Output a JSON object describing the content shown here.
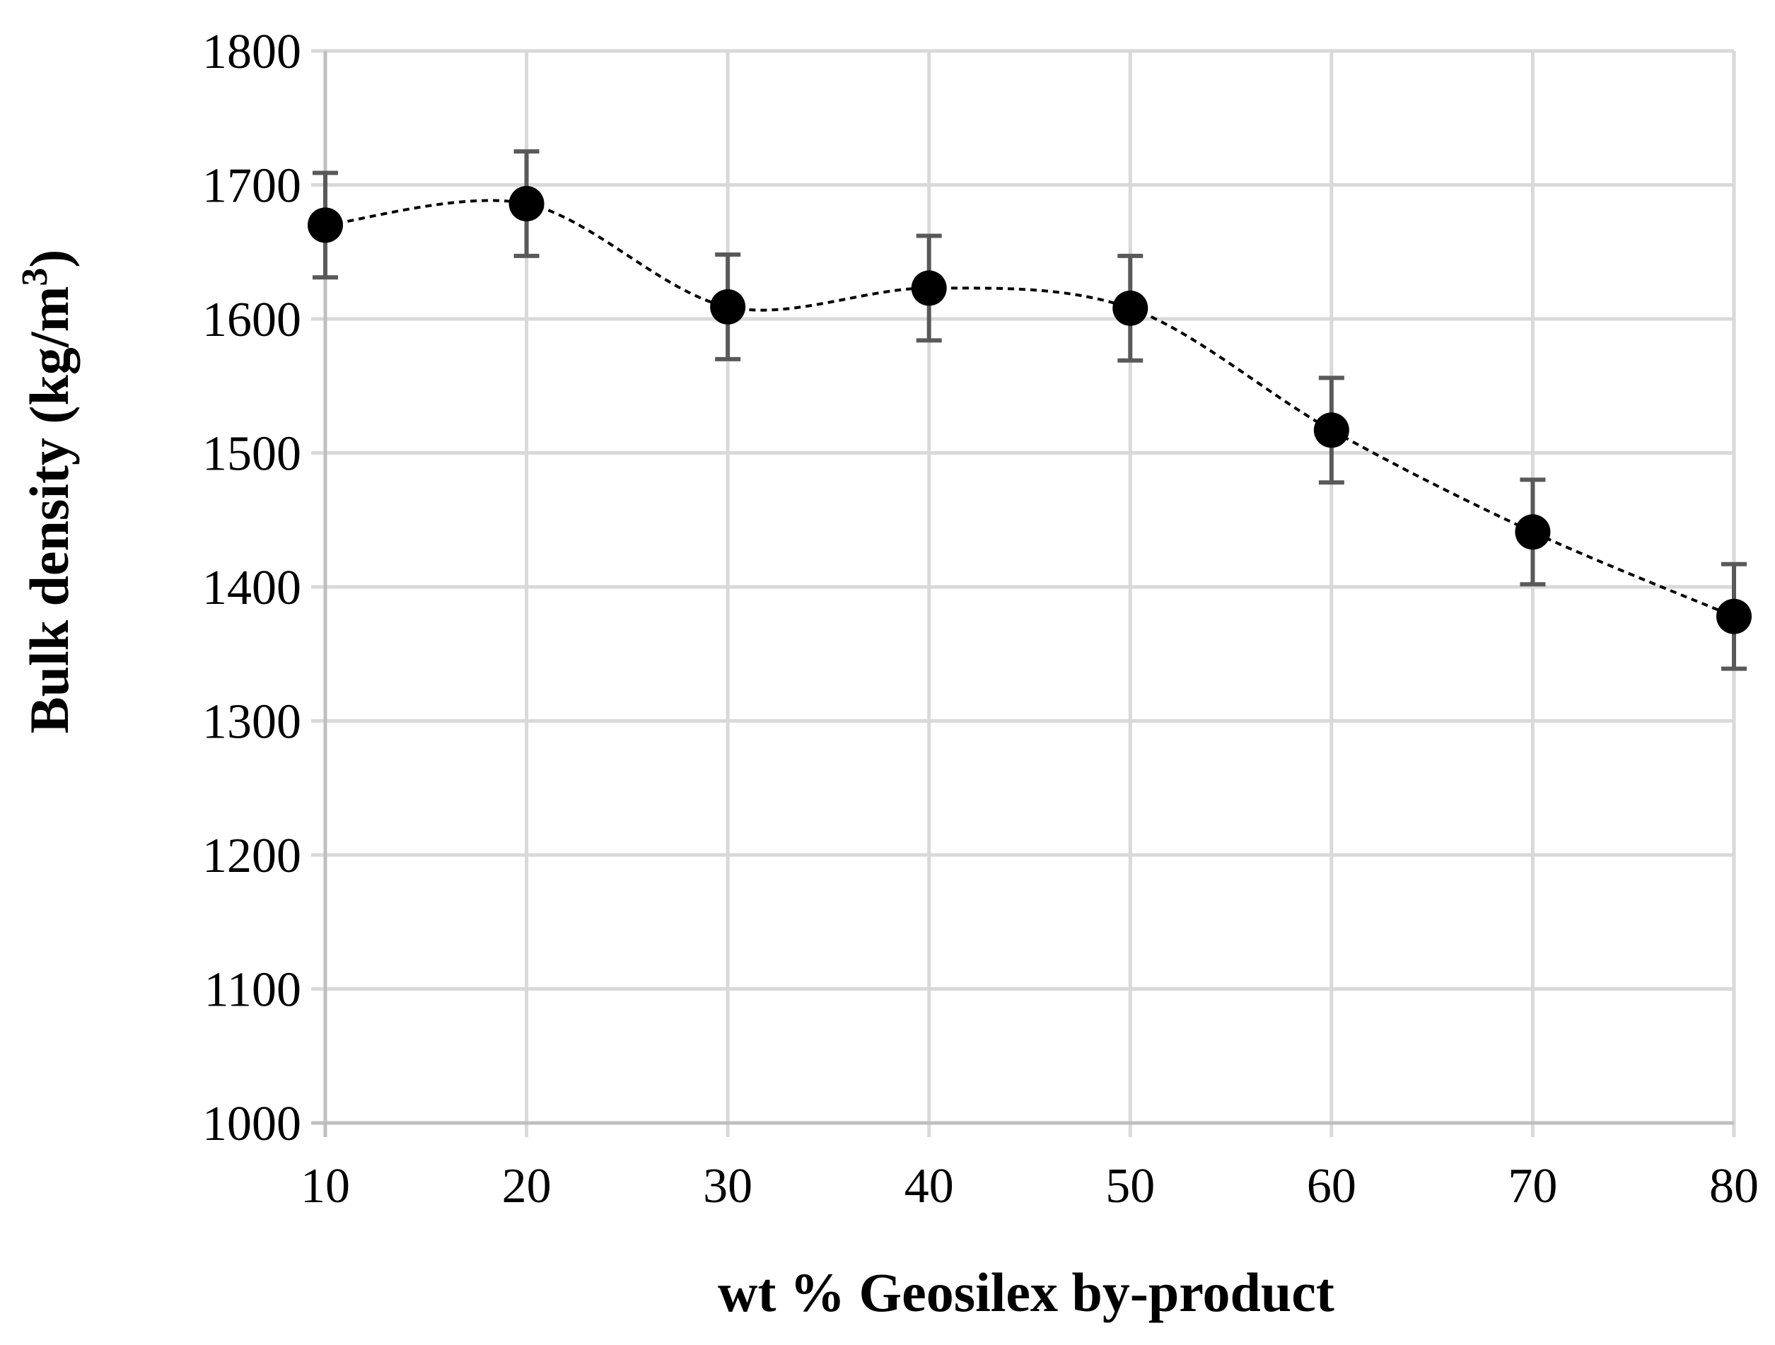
{
  "chart_data": {
    "type": "scatter",
    "title": "",
    "xlabel": "wt % Geosilex by-product",
    "ylabel_main": "Bulk density  (kg/m",
    "ylabel_sup": "3",
    "ylabel_close": ")",
    "x": [
      10,
      20,
      30,
      40,
      50,
      60,
      70,
      80
    ],
    "y": [
      1670,
      1686,
      1609,
      1623,
      1608,
      1517,
      1441,
      1378
    ],
    "error": [
      39,
      39,
      39,
      39,
      39,
      39,
      39,
      39
    ],
    "xlim": [
      10,
      80
    ],
    "ylim": [
      1000,
      1800
    ],
    "xticks": [
      10,
      20,
      30,
      40,
      50,
      60,
      70,
      80
    ],
    "yticks": [
      1000,
      1100,
      1200,
      1300,
      1400,
      1500,
      1600,
      1700,
      1800
    ],
    "trendline": "smoothed dashed",
    "grid": true,
    "colors": {
      "marker": "#000000",
      "errorbar": "#595959",
      "grid": "#d9d9d9",
      "axis": "#bfbfbf"
    }
  }
}
